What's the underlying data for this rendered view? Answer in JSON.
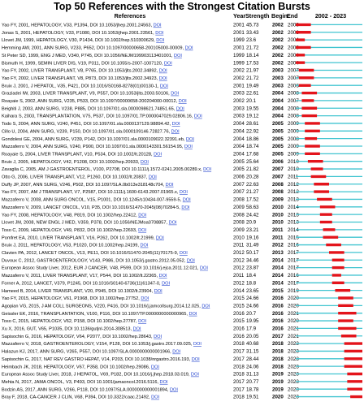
{
  "chart_data": {
    "type": "table",
    "title": "Top 50 References with the Strongest Citation Bursts",
    "columns": [
      "References",
      "Year",
      "Strength",
      "Begin",
      "End",
      "2002 - 2023"
    ],
    "timeline": {
      "start": 2002,
      "end": 2023
    },
    "colors": {
      "base": "#40c4d0",
      "burst": "#e3141b",
      "link": "#1a3ccc"
    },
    "rows": [
      {
        "ref": "Yao FY, 2001, HEPATOLOGY, V33, P1394, DOI 10.1053/jhep.2001.24563,",
        "year": 2001,
        "strength": "45.73",
        "begin": 2002,
        "end": 2006
      },
      {
        "ref": "Jonas S, 2001, HEPATOLOGY, V33, P1080, DOI 10.1053/jhep.2001.23561,",
        "year": 2001,
        "strength": "33.43",
        "begin": 2002,
        "end": 2006
      },
      {
        "ref": "Llovet JM, 1999, HEPATOLOGY, V30, P1434, DOI 10.1002/hep.510300629,",
        "year": 1999,
        "strength": "23.6",
        "begin": 2002,
        "end": 2004
      },
      {
        "ref": "Hemming AW, 2001, ANN SURG, V233, P652, DOI 10.1097/00000658-200105000-00009,",
        "year": 2001,
        "strength": "21.72",
        "begin": 2002,
        "end": 2006
      },
      {
        "ref": "St Peter SD, 1999, ENG J MED, V340, P745, DOI 10.1056/NEJM199903113401001,",
        "year": 1999,
        "strength": "18.14",
        "begin": 2002,
        "end": 2004
      },
      {
        "ref": "Bismuth H, 1999, SEMIN LIVER DIS, V19, P311, DOI 10.1055/s-2007-1007120,",
        "year": 1999,
        "strength": "17.53",
        "begin": 2002,
        "end": 2004
      },
      {
        "ref": "Yao FY, 2002, LIVER TRANSPLANT, V8, P765, DOI 10.1053/jlts.2002.34892,",
        "year": 2002,
        "strength": "21.97",
        "begin": 2003,
        "end": 2007
      },
      {
        "ref": "Yao FY, 2002, LIVER TRANSPLANT, V8, P873, DOI 10.1053/jlts.2002.34923,",
        "year": 2002,
        "strength": "21.72",
        "begin": 2003,
        "end": 2007
      },
      {
        "ref": "Bruix J, 2001, J HEPATOL, V35, P421, DOI 10.1016/S0168-8278(01)00130-1,",
        "year": 2001,
        "strength": "19.49",
        "begin": 2003,
        "end": 2006
      },
      {
        "ref": "Graziadei IW, 2003, LIVER TRANSPLANT, V9, P557, DOI 10.1053/jlts.2003.50106,",
        "year": 2003,
        "strength": "22.61",
        "begin": 2004,
        "end": 2008
      },
      {
        "ref": "Roayaie S, 2002, ANN SURG, V235, P533, DOI 10.1097/00000658-200204000-00012,",
        "year": 2002,
        "strength": "20.1",
        "begin": 2004,
        "end": 2007
      },
      {
        "ref": "Beighiti J, 2003, ANN SURG, V238, P885, DOI 10.1097/01.sla.0000098621.74851.65,",
        "year": 2003,
        "strength": "19.55",
        "begin": 2004,
        "end": 2008
      },
      {
        "ref": "Kaihara S, 2003, TRANSPLANTATION, V75, P537, DOI 10.1097/01.TP.0000047029.02806.16,",
        "year": 2003,
        "strength": "19.12",
        "begin": 2004,
        "end": 2008
      },
      {
        "ref": "Todo S, 2004, ANN SURG, V240, P451, DOI 10.1097/01.sla.0000137129.98894.42,",
        "year": 2004,
        "strength": "28.61",
        "begin": 2005,
        "end": 2009
      },
      {
        "ref": "Cillo U, 2004, ANN SURG, V239, P150, DOI 10.1097/01.sla.0000109146.72827.76,",
        "year": 2004,
        "strength": "22.92",
        "begin": 2005,
        "end": 2009
      },
      {
        "ref": "Gondolesi GE, 2004, ANN SURG, V239, P142, DOI 10.1097/01.sla.0000109022.32391.eb,",
        "year": 2004,
        "strength": "18.86",
        "begin": 2005,
        "end": 2008
      },
      {
        "ref": "Mazzaferro V, 2004, ANN SURG, V240, P900, DOI 10.1097/01.sla.0000143301.56154.95,",
        "year": 2004,
        "strength": "18.74",
        "begin": 2005,
        "end": 2009
      },
      {
        "ref": "Roayaie S, 2004, LIVER TRANSPLANT, V10, P534, DOI 10.1002/lt.20128,",
        "year": 2004,
        "strength": "17.68",
        "begin": 2005,
        "end": 2009
      },
      {
        "ref": "Bruix J, 2005, HEPATOLOGY, V42, P1208, DOI 10.1002/hep.20933,",
        "year": 2005,
        "strength": "25.64",
        "begin": 2006,
        "end": 2010
      },
      {
        "ref": "Zavaglia C, 2005, AM J GASTROENTEROL, V100, P2708, DOI 10.1111/j.1572-0241.2005.00289.x,",
        "year": 2005,
        "strength": "21.82",
        "begin": 2007,
        "end": 2010
      },
      {
        "ref": "Otto G, 2006, LIVER TRANSPLANT, V12, P1260, DOI 10.1002/lt.20837,",
        "year": 2006,
        "strength": "20.28",
        "begin": 2007,
        "end": 2011
      },
      {
        "ref": "Duffy JP, 2007, ANN SURG, V246, P502, DOI 10.1097/SLA.0b013e318148c704,",
        "year": 2007,
        "strength": "22.63",
        "begin": 2008,
        "end": 2012
      },
      {
        "ref": "Yao FY, 2007, AM J TRANSPLANT, V7, P2587, DOI 10.1111/j.1600-6143.2007.01965.x,",
        "year": 2007,
        "strength": "21.27",
        "begin": 2008,
        "end": 2012
      },
      {
        "ref": "Mazzaferro V, 2008, ANN SURG ONCOL, V15, P1001, DOI 10.1245/s10434-007-9559-5,",
        "year": 2008,
        "strength": "17.52",
        "begin": 2009,
        "end": 2013
      },
      {
        "ref": "Mazzaferro V, 2009, LANCET ONCOL, V10, P35, DOI 10.1016/S1470-2045(08)70284-5,",
        "year": 2009,
        "strength": "58.63",
        "begin": 2010,
        "end": 2014
      },
      {
        "ref": "Yao FY, 2008, HEPATOLOGY, V48, P819, DOI 10.1002/hep.22412,",
        "year": 2008,
        "strength": "24.42",
        "begin": 2010,
        "end": 2013
      },
      {
        "ref": "Llovet JM, 2008, NEW ENGL J MED, V359, P378, DOI 10.1056/NEJMoa0708857,",
        "year": 2008,
        "strength": "20.9",
        "begin": 2010,
        "end": 2013
      },
      {
        "ref": "Toso C, 2009, HEPATOLOGY, V49, P832, DOI 10.1002/hep.22693,",
        "year": 2009,
        "strength": "23.21",
        "begin": 2011,
        "end": 2014
      },
      {
        "ref": "Pomfret EA, 2010, LIVER TRANSPLANT, V16, P262, DOI 10.1002/lt.21999,",
        "year": 2010,
        "strength": "19.16",
        "begin": 2011,
        "end": 2015
      },
      {
        "ref": "Bruix J, 2011, HEPATOLOGY, V53, P1020, DOI 10.1002/hep.24199,",
        "year": 2011,
        "strength": "31.49",
        "begin": 2012,
        "end": 2016
      },
      {
        "ref": "Clavien PA, 2012, LANCET ONCOL, V13, PE11, DOI 10.1016/S1470-2045(11)70175-9,",
        "year": 2012,
        "strength": "50.17",
        "begin": 2013,
        "end": 2017
      },
      {
        "ref": "Duvoux C, 2012, GASTROENTEROLOGY, V143, P986, DOI 10.1053/j.gastro.2012.05.052,",
        "year": 2012,
        "strength": "34.46",
        "begin": 2014,
        "end": 2017
      },
      {
        "ref": "European Assoc Study Liver, 2012, EUR J CANCER, V48, P599, DOI 10.1016/j.ejca.2011.12.021,",
        "year": 2012,
        "strength": "23.87",
        "begin": 2014,
        "end": 2017
      },
      {
        "ref": "Mazzaferro V, 2011, LIVER TRANSPLANT, V17, P544, DOI 10.1002/lt.22365,",
        "year": 2011,
        "strength": "18.4",
        "begin": 2014,
        "end": 2016
      },
      {
        "ref": "Forner A, 2012, LANCET, V379, P1245, DOI 10.1016/S0140-6736(11)61347-0,",
        "year": 2012,
        "strength": "18.8",
        "begin": 2014,
        "end": 2017
      },
      {
        "ref": "Hameed B, 2014, LIVER TRANSPLANT, V20, P945, DOI 10.1002/lt.23904,",
        "year": 2014,
        "strength": "23.65",
        "begin": 2015,
        "end": 2019
      },
      {
        "ref": "Yao FY, 2015, HEPATOLOGY, V61, P1968, DOI 10.1002/hep.27752,",
        "year": 2015,
        "strength": "24.66",
        "begin": 2016,
        "end": 2020
      },
      {
        "ref": "Agopian VG, 2015, J AM COLL SURGEONS, V220, P416, DOI 10.1016/j.jamcollsurg.2014.12.025,",
        "year": 2015,
        "strength": "24.66",
        "begin": 2016,
        "end": 2020
      },
      {
        "ref": "Geissler EK, 2016, TRANSPLANTATION, V100, P116, DOI 10.1097/TP.0000000000000965,",
        "year": 2016,
        "strength": "20.7",
        "begin": 2016,
        "end": 2021
      },
      {
        "ref": "Toso C, 2015, HEPATOLOGY, V62, P158, DOI 10.1002/hep.27787,",
        "year": 2015,
        "strength": "19.95",
        "begin": 2016,
        "end": 2020
      },
      {
        "ref": "Xu X, 2016, GUT, V65, P1035, DOI 10.1136/gutjnl-2014-308513,",
        "year": 2016,
        "strength": "17.9",
        "begin": 2016,
        "end": 2021
      },
      {
        "ref": "Sapisochin G, 2016, HEPATOLOGY, V64, P2077, DOI 10.1002/hep.28643,",
        "year": 2016,
        "strength": "20.05",
        "begin": 2017,
        "end": 2021
      },
      {
        "ref": "Mazzaferro V, 2018, GASTROENTEROLOGY, V154, P128, DOI 10.1053/j.gastro.2017.09.025,",
        "year": 2018,
        "strength": "40.68",
        "begin": 2018,
        "end": 2023
      },
      {
        "ref": "Halazun KJ, 2017, ANN SURG, V265, P557, DOI 10.1097/SLA.0000000000001966,",
        "year": 2017,
        "strength": "31.15",
        "begin": 2018,
        "end": 2023
      },
      {
        "ref": "Sapisochin G, 2017, NAT REV GASTRO HEPAT, V14, P203, DOI 10.1038/nrgastro.2016.193,",
        "year": 2017,
        "strength": "28.44",
        "begin": 2018,
        "end": 2023
      },
      {
        "ref": "Heimbach JK, 2018, HEPATOLOGY, V67, P358, DOI 10.1002/hep.29086,",
        "year": 2018,
        "strength": "24.06",
        "begin": 2018,
        "end": 2023
      },
      {
        "ref": "European Assoc Study Liver, 2018, J HEPATOL, V69, P182, DOI 10.1016/j.jhep.2018.03.019,",
        "year": 2018,
        "strength": "31.13",
        "begin": 2019,
        "end": 2023
      },
      {
        "ref": "Mehta N, 2017, JAMA ONCOL, V3, P493, DOI 10.1001/jamaoncol.2016.5116,",
        "year": 2017,
        "strength": "20.77",
        "begin": 2019,
        "end": 2023
      },
      {
        "ref": "Bodzin AS, 2017, ANN SURG, V266, P118, DOI 10.1097/SLA.0000000000001894,",
        "year": 2017,
        "strength": "18.78",
        "begin": 2019,
        "end": 2023
      },
      {
        "ref": "Bray F, 2018, CA-CANCER J CLIN, V68, P394, DOI 10.3322/caac.21492,",
        "year": 2018,
        "strength": "19.51",
        "begin": 2020,
        "end": 2023
      }
    ]
  }
}
